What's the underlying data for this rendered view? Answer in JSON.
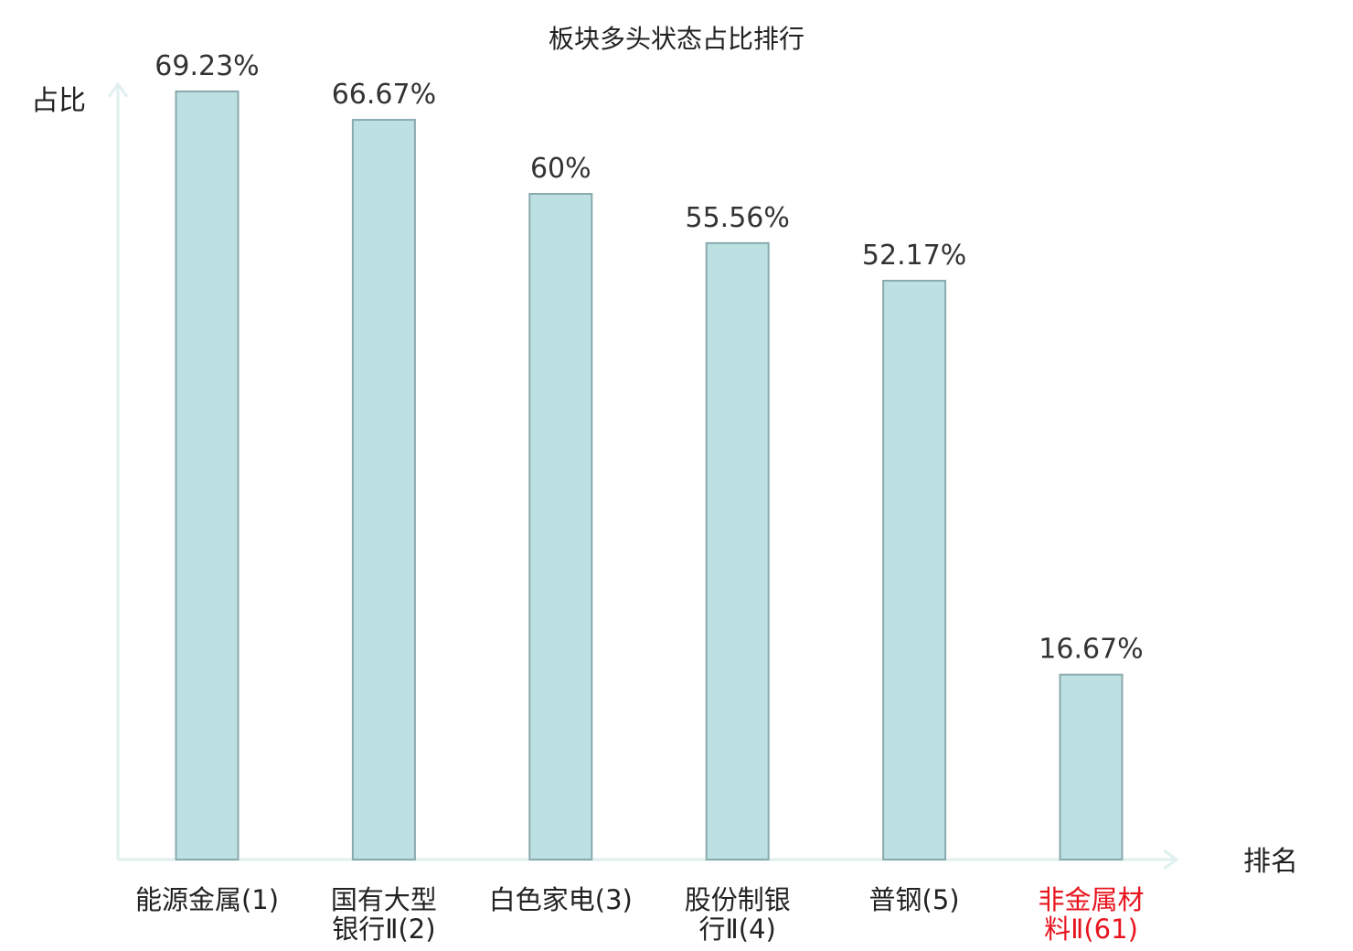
{
  "chart_data": {
    "type": "bar",
    "title": "板块多头状态占比排行",
    "ylabel": "占比",
    "xlabel": "排名",
    "categories": [
      [
        "能源金属(1)"
      ],
      [
        "国有大型",
        "银行Ⅱ(2)"
      ],
      [
        "白色家电(3)"
      ],
      [
        "股份制银",
        "行Ⅱ(4)"
      ],
      [
        "普钢(5)"
      ],
      [
        "非金属材",
        "料Ⅱ(61)"
      ]
    ],
    "values": [
      69.23,
      66.67,
      60,
      55.56,
      52.17,
      16.67
    ],
    "value_labels": [
      "69.23%",
      "66.67%",
      "60%",
      "55.56%",
      "52.17%",
      "16.67%"
    ],
    "highlight_index": 5,
    "ylim": [
      0,
      69.23
    ],
    "grid": false,
    "legend": "none",
    "colors": {
      "bar_fill": "#bde0e3",
      "bar_stroke": "#8aaaad",
      "axis": "#dff0ee",
      "text": "#222222",
      "highlight_text": "#e8141e"
    }
  }
}
